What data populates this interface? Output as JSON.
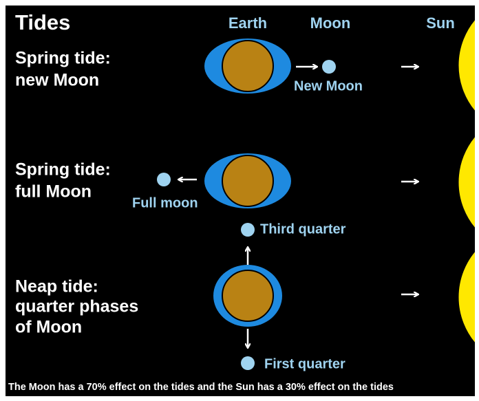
{
  "title": "Tides",
  "column_headers": [
    "Earth",
    "Moon",
    "Sun"
  ],
  "panels": [
    {
      "label_lines": [
        "Spring tide:",
        "new Moon"
      ],
      "moon_labels": [
        "New Moon"
      ]
    },
    {
      "label_lines": [
        "Spring tide:",
        "full Moon"
      ],
      "moon_labels": [
        "Full moon"
      ]
    },
    {
      "label_lines": [
        "Neap tide:",
        "quarter phases",
        "of Moon"
      ],
      "moon_labels": [
        "Third quarter",
        "First quarter"
      ]
    }
  ],
  "footer": "The Moon has a 70% effect on the tides and the Sun has a 30% effect on the tides"
}
